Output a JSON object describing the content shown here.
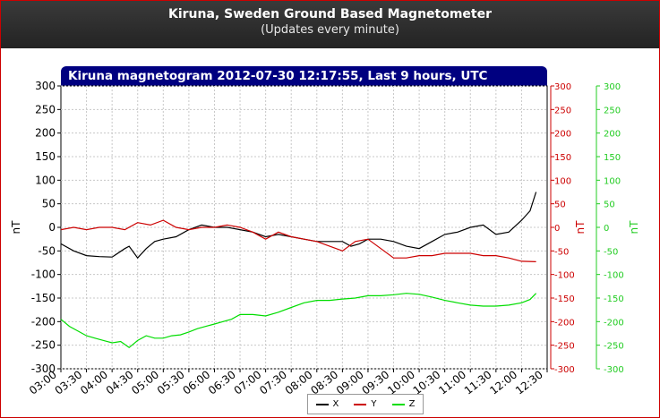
{
  "header": {
    "title": "Kiruna, Sweden Ground Based Magnetometer",
    "subtitle": "(Updates every minute)"
  },
  "chart_data": {
    "type": "line",
    "title": "Kiruna magnetogram 2012-07-30 12:17:55, Last 9 hours, UTC",
    "ylabel_left": "nT",
    "ylabel_right1": "nT",
    "ylabel_right2": "nT",
    "ylim": [
      -300,
      300
    ],
    "yticks": [
      300,
      250,
      200,
      150,
      100,
      50,
      0,
      -50,
      -100,
      -150,
      -200,
      -250,
      -300
    ],
    "xlim": [
      "03:00",
      "12:30"
    ],
    "xticks": [
      "03:00",
      "03:30",
      "04:00",
      "04:30",
      "05:00",
      "05:30",
      "06:00",
      "06:30",
      "07:00",
      "07:30",
      "08:00",
      "08:30",
      "09:00",
      "09:30",
      "10:00",
      "10:30",
      "11:00",
      "11:30",
      "12:00",
      "12:30"
    ],
    "grid": true,
    "legend_position": "bottom",
    "series": [
      {
        "name": "X",
        "color": "#000000",
        "x": [
          "03:00",
          "03:15",
          "03:30",
          "03:45",
          "04:00",
          "04:15",
          "04:20",
          "04:30",
          "04:40",
          "04:50",
          "05:00",
          "05:15",
          "05:30",
          "05:45",
          "06:00",
          "06:15",
          "06:30",
          "06:45",
          "07:00",
          "07:15",
          "07:30",
          "07:45",
          "08:00",
          "08:15",
          "08:30",
          "08:40",
          "08:50",
          "09:00",
          "09:15",
          "09:30",
          "09:45",
          "10:00",
          "10:15",
          "10:30",
          "10:45",
          "11:00",
          "11:15",
          "11:30",
          "11:45",
          "12:00",
          "12:10",
          "12:17"
        ],
        "y": [
          -35,
          -50,
          -60,
          -62,
          -63,
          -45,
          -40,
          -65,
          -45,
          -30,
          -25,
          -20,
          -5,
          5,
          0,
          0,
          -5,
          -10,
          -20,
          -15,
          -20,
          -25,
          -30,
          -30,
          -30,
          -40,
          -35,
          -25,
          -25,
          -30,
          -40,
          -45,
          -30,
          -15,
          -10,
          0,
          5,
          -15,
          -10,
          15,
          35,
          75
        ]
      },
      {
        "name": "Y",
        "color": "#cc0000",
        "x": [
          "03:00",
          "03:15",
          "03:30",
          "03:45",
          "04:00",
          "04:15",
          "04:30",
          "04:45",
          "05:00",
          "05:15",
          "05:30",
          "05:45",
          "06:00",
          "06:15",
          "06:30",
          "06:45",
          "07:00",
          "07:15",
          "07:30",
          "07:45",
          "08:00",
          "08:15",
          "08:30",
          "08:45",
          "09:00",
          "09:15",
          "09:30",
          "09:45",
          "10:00",
          "10:15",
          "10:30",
          "10:45",
          "11:00",
          "11:15",
          "11:30",
          "11:45",
          "12:00",
          "12:17"
        ],
        "y": [
          -5,
          0,
          -5,
          0,
          0,
          -5,
          10,
          5,
          15,
          0,
          -5,
          0,
          0,
          5,
          0,
          -10,
          -25,
          -10,
          -20,
          -25,
          -30,
          -40,
          -50,
          -30,
          -25,
          -45,
          -65,
          -65,
          -60,
          -60,
          -55,
          -55,
          -55,
          -60,
          -60,
          -65,
          -72,
          -73
        ]
      },
      {
        "name": "Z",
        "color": "#00dd00",
        "x": [
          "03:00",
          "03:10",
          "03:20",
          "03:30",
          "03:40",
          "03:50",
          "04:00",
          "04:10",
          "04:20",
          "04:30",
          "04:40",
          "04:50",
          "05:00",
          "05:10",
          "05:20",
          "05:30",
          "05:40",
          "05:50",
          "06:00",
          "06:10",
          "06:20",
          "06:30",
          "06:45",
          "07:00",
          "07:15",
          "07:30",
          "07:45",
          "08:00",
          "08:15",
          "08:30",
          "08:45",
          "09:00",
          "09:15",
          "09:30",
          "09:45",
          "10:00",
          "10:15",
          "10:30",
          "10:45",
          "11:00",
          "11:15",
          "11:30",
          "11:45",
          "12:00",
          "12:10",
          "12:17"
        ],
        "y": [
          -195,
          -210,
          -220,
          -230,
          -235,
          -240,
          -245,
          -242,
          -255,
          -240,
          -230,
          -235,
          -235,
          -230,
          -228,
          -222,
          -215,
          -210,
          -205,
          -200,
          -195,
          -185,
          -185,
          -188,
          -180,
          -170,
          -160,
          -155,
          -155,
          -152,
          -150,
          -145,
          -145,
          -143,
          -140,
          -142,
          -148,
          -155,
          -160,
          -165,
          -167,
          -167,
          -165,
          -160,
          -153,
          -140
        ]
      }
    ]
  }
}
